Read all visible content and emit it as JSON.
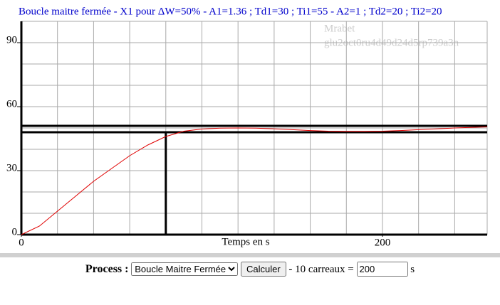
{
  "chart_data": {
    "type": "line",
    "title": "Boucle maitre fermée - X1 pour ΔW=50% - A1=1.36 ; Td1=30 ; Ti1=55 - A2=1 ; Td2=20 ; Ti2=20",
    "watermark": [
      "Mrabet",
      "glu2oct0ru4d49d24d5rp739a3n"
    ],
    "x_label": "Temps en s",
    "x": [
      0,
      10,
      20,
      30,
      40,
      50,
      60,
      70,
      80,
      90,
      100,
      110,
      120,
      130,
      140,
      150,
      160,
      170,
      180,
      190,
      200,
      210,
      220,
      230,
      240,
      250,
      258
    ],
    "series": [
      {
        "color": "#e00000",
        "values": [
          0,
          4,
          11,
          18,
          25,
          31,
          37,
          42,
          46,
          48.5,
          49.5,
          49.9,
          50,
          49.9,
          49.6,
          49.2,
          48.8,
          48.5,
          48.4,
          48.4,
          48.5,
          48.8,
          49.2,
          49.6,
          50,
          50.3,
          50.5
        ]
      }
    ],
    "ref_lines": [
      51,
      48
    ],
    "marker_x": 80,
    "xlim": [
      0,
      258
    ],
    "ylim": [
      0,
      100
    ],
    "xticks": [
      0,
      200
    ],
    "yticks": [
      0,
      30,
      60,
      90
    ],
    "grid": true,
    "grid_step_x": 20,
    "grid_step_y": 10
  },
  "form": {
    "label": "Process :",
    "options": [
      "Boucle Maitre Fermée"
    ],
    "button": "Calculer",
    "text": "- 10 carreaux =",
    "input_value": "200",
    "unit": "s"
  }
}
